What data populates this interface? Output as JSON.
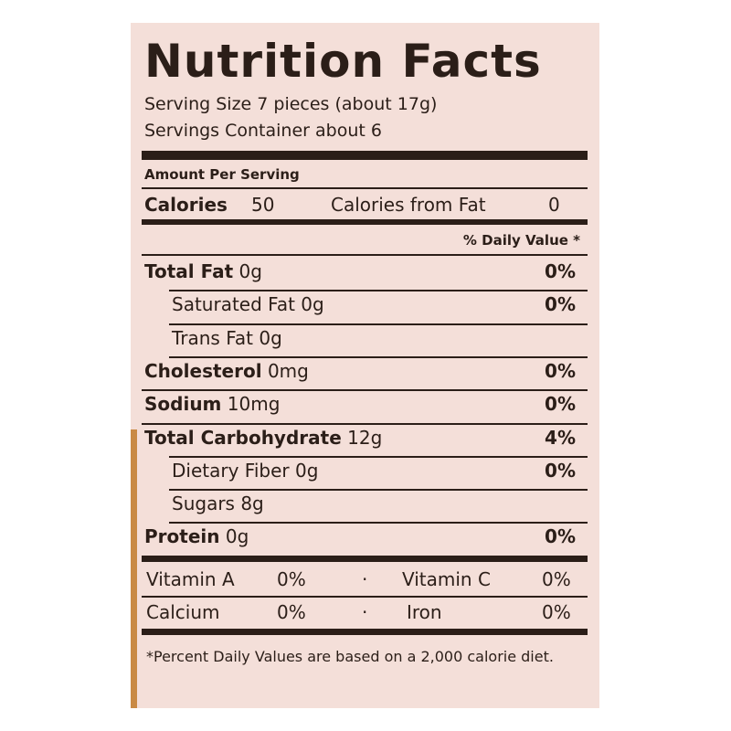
{
  "title": "Nutrition Facts",
  "serving_size": "Serving Size 7 pieces (about 17g)",
  "servings": "Servings Container about 6",
  "amount_per_serving": "Amount Per Serving",
  "calories": {
    "label": "Calories",
    "value": "50",
    "from_fat_label": "Calories from Fat",
    "from_fat_value": "0"
  },
  "daily_value_header": "% Daily Value *",
  "nutrients": [
    {
      "name": "Total Fat",
      "amount": "0g",
      "dv": "0%",
      "bold": true,
      "indent": false
    },
    {
      "name": "Saturated Fat",
      "amount": "0g",
      "dv": "0%",
      "bold": false,
      "indent": true
    },
    {
      "name": "Trans Fat",
      "amount": "0g",
      "bold": false,
      "indent": true
    },
    {
      "name": "Cholesterol",
      "amount": "0mg",
      "dv": "0%",
      "bold": true,
      "indent": false
    },
    {
      "name": "Sodium",
      "amount": "10mg",
      "dv": "0%",
      "bold": true,
      "indent": false
    },
    {
      "name": "Total Carbohydrate",
      "amount": "12g",
      "dv": "4%",
      "bold": true,
      "indent": false
    },
    {
      "name": "Dietary Fiber",
      "amount": "0g",
      "dv": "0%",
      "bold": false,
      "indent": true
    },
    {
      "name": "Sugars",
      "amount": "8g",
      "bold": false,
      "indent": true
    },
    {
      "name": "Protein",
      "amount": "0g",
      "dv": "0%",
      "bold": true,
      "indent": false
    }
  ],
  "vitamins": [
    [
      {
        "name": "Vitamin A",
        "dv": "0%"
      },
      {
        "name": "Vitamin C",
        "dv": "0%"
      }
    ],
    [
      {
        "name": "Calcium",
        "dv": "0%"
      },
      {
        "name": "Iron",
        "dv": "0%"
      }
    ]
  ],
  "footnote": "*Percent Daily Values are based on a 2,000 calorie diet."
}
